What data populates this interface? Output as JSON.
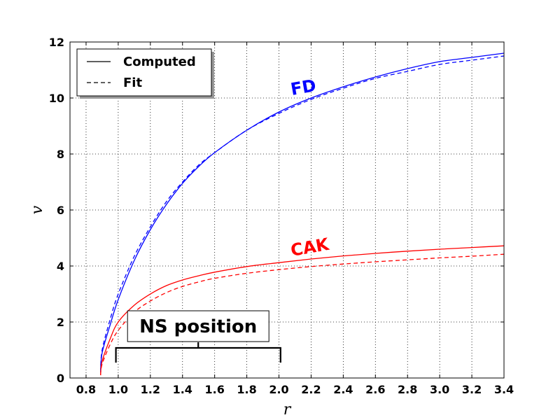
{
  "chart_data": {
    "type": "line",
    "xlabel": "r",
    "ylabel": "v",
    "xlim": [
      0.7,
      3.4
    ],
    "ylim": [
      0,
      12
    ],
    "xticks": [
      "0.8",
      "1.0",
      "1.2",
      "1.4",
      "1.6",
      "1.8",
      "2.0",
      "2.2",
      "2.4",
      "2.6",
      "2.8",
      "3.0",
      "3.2",
      "3.4"
    ],
    "yticks": [
      "0",
      "2",
      "4",
      "6",
      "8",
      "10",
      "12"
    ],
    "grid": true,
    "legend": {
      "position": "upper-left",
      "entries": [
        {
          "label": "Computed",
          "style": "solid"
        },
        {
          "label": "Fit",
          "style": "dashed"
        }
      ]
    },
    "series": [
      {
        "name": "FD Computed",
        "label": "FD",
        "color": "#0000ff",
        "style": "solid",
        "x": [
          0.89,
          0.9,
          0.95,
          1.0,
          1.1,
          1.2,
          1.3,
          1.4,
          1.5,
          1.6,
          1.8,
          2.0,
          2.2,
          2.4,
          2.6,
          2.8,
          3.0,
          3.2,
          3.4
        ],
        "y": [
          0.2,
          0.9,
          1.9,
          2.8,
          4.2,
          5.3,
          6.2,
          6.95,
          7.55,
          8.05,
          8.85,
          9.5,
          10.0,
          10.4,
          10.75,
          11.05,
          11.3,
          11.45,
          11.6
        ]
      },
      {
        "name": "FD Fit",
        "label": "FD",
        "color": "#0000ff",
        "style": "dashed",
        "x": [
          0.89,
          0.9,
          0.95,
          1.0,
          1.1,
          1.2,
          1.3,
          1.4,
          1.5,
          1.6,
          1.8,
          2.0,
          2.2,
          2.4,
          2.6,
          2.8,
          3.0,
          3.2,
          3.4
        ],
        "y": [
          0.2,
          1.0,
          2.1,
          3.0,
          4.35,
          5.4,
          6.3,
          7.0,
          7.6,
          8.05,
          8.85,
          9.45,
          9.95,
          10.35,
          10.7,
          10.95,
          11.2,
          11.35,
          11.5
        ]
      },
      {
        "name": "CAK Computed",
        "label": "CAK",
        "color": "#ff0000",
        "style": "solid",
        "x": [
          0.89,
          0.9,
          0.95,
          1.0,
          1.1,
          1.2,
          1.3,
          1.4,
          1.5,
          1.6,
          1.8,
          2.0,
          2.2,
          2.4,
          2.6,
          2.8,
          3.0,
          3.2,
          3.4
        ],
        "y": [
          0.1,
          0.6,
          1.4,
          2.0,
          2.6,
          3.0,
          3.3,
          3.5,
          3.65,
          3.78,
          3.98,
          4.12,
          4.25,
          4.36,
          4.45,
          4.53,
          4.6,
          4.66,
          4.72
        ]
      },
      {
        "name": "CAK Fit",
        "label": "CAK",
        "color": "#ff0000",
        "style": "dashed",
        "x": [
          0.89,
          0.9,
          0.95,
          1.0,
          1.1,
          1.2,
          1.3,
          1.4,
          1.5,
          1.6,
          1.8,
          2.0,
          2.2,
          2.4,
          2.6,
          2.8,
          3.0,
          3.2,
          3.4
        ],
        "y": [
          0.1,
          0.5,
          1.2,
          1.7,
          2.35,
          2.75,
          3.05,
          3.27,
          3.43,
          3.56,
          3.74,
          3.87,
          3.98,
          4.07,
          4.15,
          4.22,
          4.29,
          4.35,
          4.42
        ]
      }
    ],
    "series_labels": [
      {
        "text": "FD",
        "x": 2.08,
        "y": 10.1,
        "color": "#0000ff"
      },
      {
        "text": "CAK",
        "x": 2.08,
        "y": 4.35,
        "color": "#ff0000"
      }
    ],
    "annotation": {
      "text": "NS position",
      "x_range": [
        0.99,
        2.01
      ],
      "bracket_y": 1.1
    }
  }
}
